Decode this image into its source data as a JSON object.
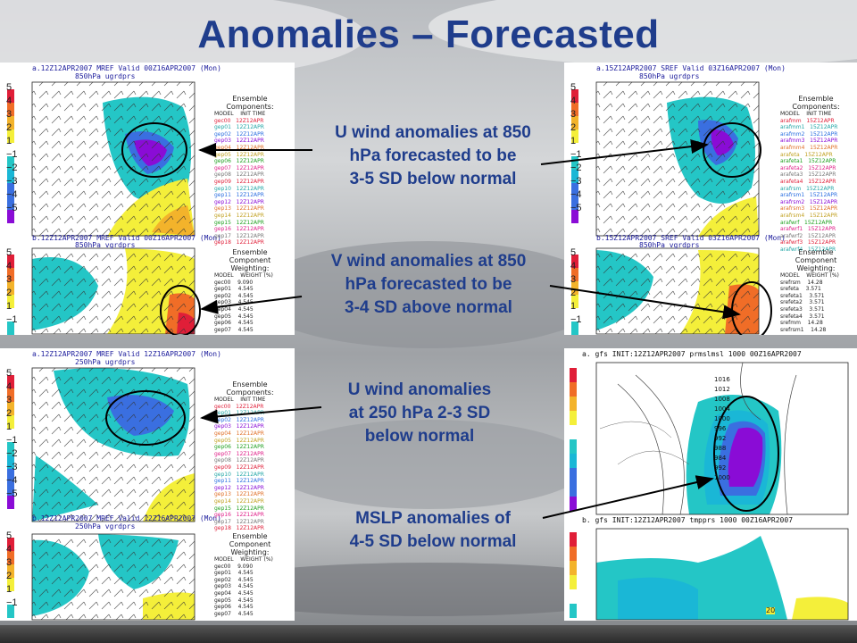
{
  "slide": {
    "title": "Anomalies – Forecasted"
  },
  "colors": {
    "title": "#1f3d8c",
    "anom_neg5": "#8a0cd6",
    "anom_neg3": "#3a6fe0",
    "anom_neg2": "#1ab7d6",
    "anom_neg1": "#24c6c6",
    "anom_pos1": "#f4ef3a",
    "anom_pos2": "#f3b32b",
    "anom_pos3": "#f06d27",
    "anom_pos5": "#e01e38"
  },
  "panels": {
    "p1": {
      "header": "a.12Z12APR2007 MREF Valid 00Z16APR2007 (Mon)",
      "sub": "850hPa ugrdprs"
    },
    "p2": {
      "header": "b.12Z12APR2007 MREF Valid 00Z16APR2007 (Mon)",
      "sub": "850hPa vgrdprs"
    },
    "p3": {
      "header": "a.15Z12APR2007 SREF Valid 03Z16APR2007 (Mon)",
      "sub": "850hPa ugrdprs"
    },
    "p4": {
      "header": "b.15Z12APR2007 SREF Valid 03Z16APR2007 (Mon)",
      "sub": "850hPa vgrdprs"
    },
    "p5": {
      "header": "a.12Z12APR2007 MREF Valid 12Z16APR2007 (Mon)",
      "sub": "250hPa ugrdprs"
    },
    "p6": {
      "header": "b.12Z12APR2007 MREF Valid 12Z16APR2007 (Mon)",
      "sub": "250hPa vgrdprs"
    },
    "p7": {
      "header": "a.  gfs INIT:12Z12APR2007 prmslmsl 1000 00Z16APR2007"
    },
    "p8": {
      "header": "b.  gfs INIT:12Z12APR2007 tmpprs 1000 00Z16APR2007"
    }
  },
  "colorbar_labels": [
    "5",
    "4",
    "3",
    "2",
    "1",
    "−1",
    "−2",
    "−3",
    "−4",
    "−5"
  ],
  "colorbar_labels_short": [
    "5",
    "4",
    "3",
    "2",
    "1",
    "−1"
  ],
  "legends": {
    "components_title": "Ensemble Components:",
    "components_cols": [
      "MODEL",
      "INIT TIME"
    ],
    "weighting_title": "Ensemble Component Weighting:",
    "weighting_cols": [
      "MODEL",
      "WEIGHT (%)"
    ],
    "mref_members": [
      "gec00",
      "gep01",
      "gep02",
      "gep03",
      "gep04",
      "gep05",
      "gep06",
      "gep07",
      "gep08",
      "gep09",
      "gep10",
      "gep11",
      "gep12",
      "gep13",
      "gep14",
      "gep15",
      "gep16",
      "gep17",
      "gep18"
    ],
    "mref_init": "12Z12APR",
    "mref_weights": [
      {
        "m": "gec00",
        "w": "9.090"
      },
      {
        "m": "gep01",
        "w": "4.545"
      },
      {
        "m": "gep02",
        "w": "4.545"
      },
      {
        "m": "gep03",
        "w": "4.545"
      },
      {
        "m": "gep04",
        "w": "4.545"
      },
      {
        "m": "gep05",
        "w": "4.545"
      },
      {
        "m": "gep06",
        "w": "4.545"
      },
      {
        "m": "gep07",
        "w": "4.545"
      }
    ],
    "sref_members": [
      "arafmm",
      "arafmm1",
      "arafmm2",
      "arafmm3",
      "arafmm4",
      "arafeta",
      "arafeta1",
      "arafeta2",
      "arafeta3",
      "arafeta4",
      "arafrsm",
      "arafrsm1",
      "arafrsm2",
      "arafrsm3",
      "arafrsm4",
      "arafwrf",
      "arafwrf1",
      "arafwrf2",
      "arafwrf3",
      "arafwrf4"
    ],
    "sref_init": "15Z12APR",
    "sref_weights": [
      {
        "m": "srefrsm",
        "w": "14.28"
      },
      {
        "m": "srefeta",
        "w": "3.571"
      },
      {
        "m": "srefeta1",
        "w": "3.571"
      },
      {
        "m": "srefeta2",
        "w": "3.571"
      },
      {
        "m": "srefeta3",
        "w": "3.571"
      },
      {
        "m": "srefeta4",
        "w": "3.571"
      },
      {
        "m": "srefmm",
        "w": "14.28"
      },
      {
        "m": "srefrsm1",
        "w": "14.28"
      }
    ]
  },
  "mslp_labels": [
    "1016",
    "1012",
    "1008",
    "1004",
    "1000",
    "996",
    "992",
    "988",
    "984",
    "992",
    "1000"
  ],
  "temp_label": "20",
  "annotations": [
    {
      "line1": "U wind anomalies at 850",
      "line2": "hPa forecasted to be",
      "line3": "3-5 SD below normal"
    },
    {
      "line1": "V wind anomalies at 850",
      "line2": "hPa forecasted to be",
      "line3": "3-4 SD above normal"
    },
    {
      "line1": "U wind anomalies",
      "line2": "at 250 hPa 2-3 SD",
      "line3": "below normal"
    },
    {
      "line1": "MSLP anomalies of",
      "line2": "4-5 SD below normal",
      "line3": ""
    }
  ]
}
